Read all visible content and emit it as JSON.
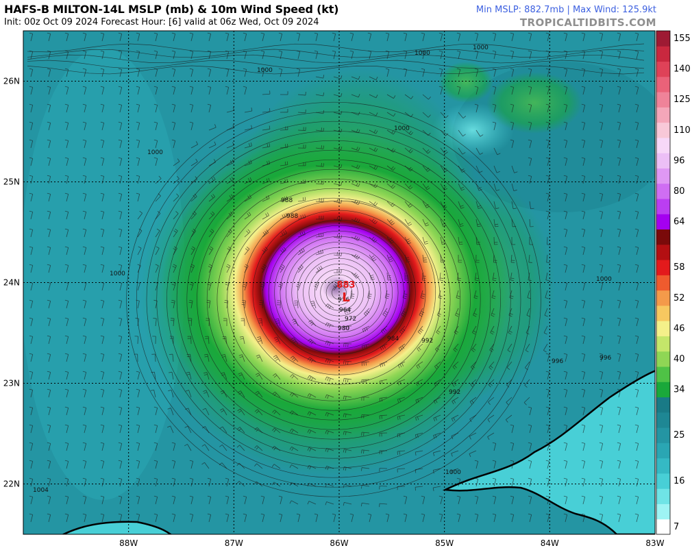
{
  "header": {
    "title": "HAFS-B MILTON-14L MSLP (mb) & 10m Wind Speed (kt)",
    "subtitle": "Init: 00z Oct 09 2024   Forecast Hour: [6]   valid at 06z Wed, Oct 09 2024",
    "stats": "Min MSLP: 882.7mb | Max Wind: 125.9kt",
    "brand": "TROPICALTIDBITS.COM"
  },
  "map": {
    "lon_range": [
      -89,
      -83
    ],
    "lat_range": [
      21.5,
      26.5
    ],
    "lat_ticks": [
      {
        "value": 26,
        "label": "26N"
      },
      {
        "value": 25,
        "label": "25N"
      },
      {
        "value": 24,
        "label": "24N"
      },
      {
        "value": 23,
        "label": "23N"
      },
      {
        "value": 22,
        "label": "22N"
      }
    ],
    "lon_ticks": [
      {
        "value": -88,
        "label": "88W"
      },
      {
        "value": -87,
        "label": "87W"
      },
      {
        "value": -86,
        "label": "86W"
      },
      {
        "value": -85,
        "label": "85W"
      },
      {
        "value": -84,
        "label": "84W"
      },
      {
        "value": -83,
        "label": "83W"
      }
    ],
    "storm_center": {
      "lon": -86.0,
      "lat": 23.9
    },
    "low_marker": "L",
    "central_pressure_label": "883",
    "isobar_labels": [
      "1000",
      "1000",
      "1000",
      "1000",
      "1000",
      "1000",
      "996",
      "996",
      "992",
      "992",
      "988",
      "988",
      "984",
      "980",
      "964",
      "972",
      "936",
      "1000",
      "1000",
      "1004"
    ],
    "colors": {
      "background_sea": "#2b9a9e",
      "land_outline": "#000000",
      "grid_line": "#000000"
    }
  },
  "colorbar": {
    "labels": [
      "155",
      "140",
      "125",
      "110",
      "96",
      "80",
      "64",
      "58",
      "52",
      "46",
      "40",
      "34",
      "25",
      "16",
      "7"
    ],
    "bins": [
      {
        "value": 7,
        "color": "#ffffff"
      },
      {
        "value": 10,
        "color": "#9ef4f4"
      },
      {
        "value": 13,
        "color": "#6fe4e6"
      },
      {
        "value": 16,
        "color": "#48cfd6"
      },
      {
        "value": 19,
        "color": "#35b9c4"
      },
      {
        "value": 22,
        "color": "#2aa6b3"
      },
      {
        "value": 25,
        "color": "#2495a3"
      },
      {
        "value": 28,
        "color": "#1e8794"
      },
      {
        "value": 31,
        "color": "#197a86"
      },
      {
        "value": 34,
        "color": "#1aa83a"
      },
      {
        "value": 37,
        "color": "#4fc246"
      },
      {
        "value": 40,
        "color": "#8fd655"
      },
      {
        "value": 43,
        "color": "#c4e66a"
      },
      {
        "value": 46,
        "color": "#f4f08a"
      },
      {
        "value": 49,
        "color": "#f7c860"
      },
      {
        "value": 52,
        "color": "#f49a4a"
      },
      {
        "value": 55,
        "color": "#ef5b2e"
      },
      {
        "value": 58,
        "color": "#e31a1c"
      },
      {
        "value": 61,
        "color": "#b30f12"
      },
      {
        "value": 63,
        "color": "#7a0a0a"
      },
      {
        "value": 64,
        "color": "#a400f0"
      },
      {
        "value": 72,
        "color": "#bb3ef2"
      },
      {
        "value": 80,
        "color": "#cf6ef3"
      },
      {
        "value": 88,
        "color": "#df98f4"
      },
      {
        "value": 96,
        "color": "#ecbff6"
      },
      {
        "value": 103,
        "color": "#f7d8f8"
      },
      {
        "value": 110,
        "color": "#f8c8d8"
      },
      {
        "value": 117,
        "color": "#f4a6b9"
      },
      {
        "value": 125,
        "color": "#ef8399"
      },
      {
        "value": 132,
        "color": "#ea6279"
      },
      {
        "value": 140,
        "color": "#df4258"
      },
      {
        "value": 148,
        "color": "#c9283f"
      },
      {
        "value": 155,
        "color": "#9e1a33"
      }
    ]
  }
}
